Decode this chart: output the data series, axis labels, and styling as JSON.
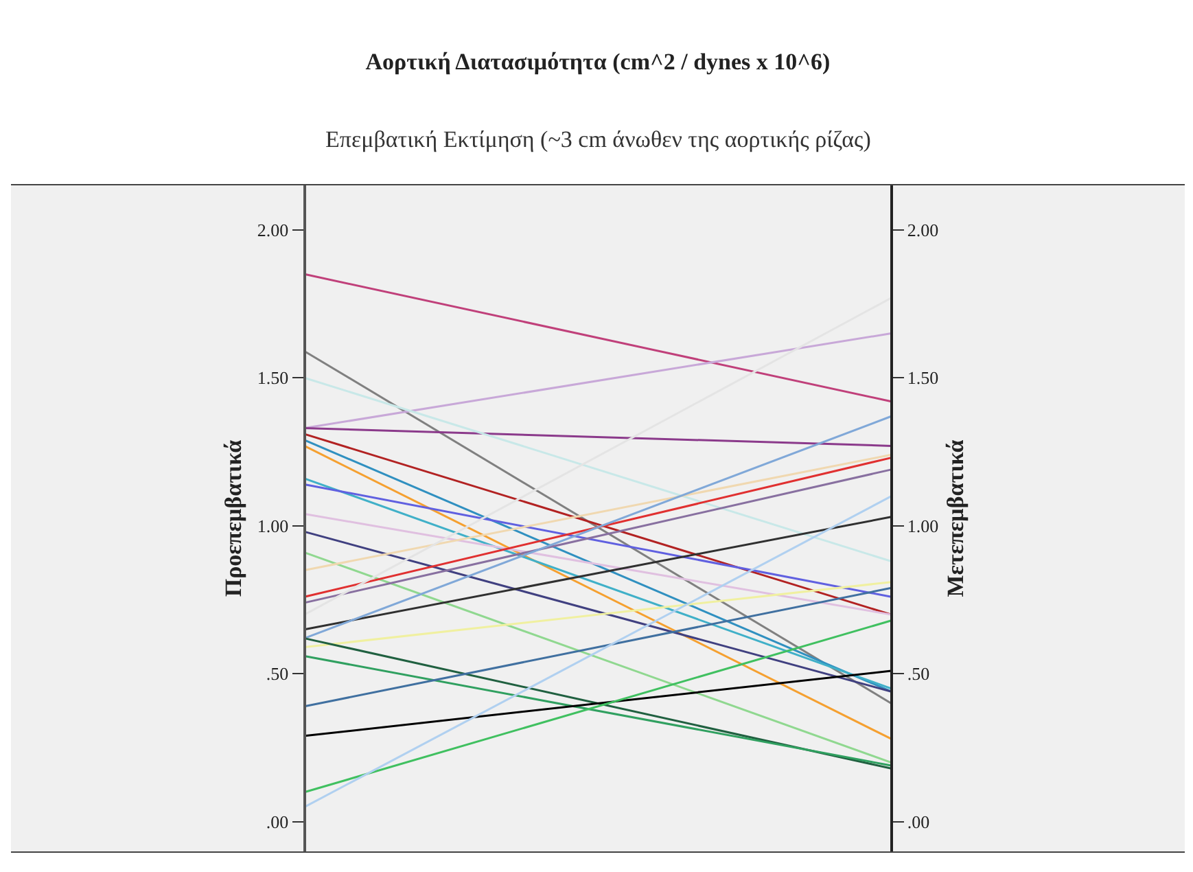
{
  "chart_data": {
    "type": "line",
    "title": "Αορτική Διατασιμότητα (cm^2 / dynes x 10^6)",
    "subtitle": "Επεμβατική Εκτίμηση (~3 cm άνωθεν της αορτικής ρίζας)",
    "ylabel": "Προεπεμβατικά",
    "y2label": "Μετεπεμβατικά",
    "categories": [
      null,
      null
    ],
    "ylim": [
      -0.1,
      2.15
    ],
    "yticks": [
      {
        "value": 0,
        "label": ".00"
      },
      {
        "value": 0.5,
        "label": ".50"
      },
      {
        "value": 1,
        "label": "1.00"
      },
      {
        "value": 1.5,
        "label": "1.50"
      },
      {
        "value": 2,
        "label": "2.00"
      }
    ],
    "y2lim": [
      -0.1,
      2.15
    ],
    "y2ticks": [
      {
        "value": 0,
        "label": ".00"
      },
      {
        "value": 0.5,
        "label": ".50"
      },
      {
        "value": 1,
        "label": "1.00"
      },
      {
        "value": 1.5,
        "label": "1.50"
      },
      {
        "value": 2,
        "label": "2.00"
      }
    ],
    "grid": false,
    "marker": "none",
    "line_style": "solid",
    "series": [
      {
        "color": "#c0407a",
        "values": [
          1.85,
          1.42
        ]
      },
      {
        "color": "#808080",
        "values": [
          1.59,
          0.4
        ]
      },
      {
        "color": "#c8a8d8",
        "values": [
          1.33,
          1.65
        ]
      },
      {
        "color": "#8b3a8b",
        "values": [
          1.33,
          1.27
        ]
      },
      {
        "color": "#b22222",
        "values": [
          1.31,
          0.7
        ]
      },
      {
        "color": "#c8e8e8",
        "values": [
          1.5,
          0.88
        ]
      },
      {
        "color": "#f5a030",
        "values": [
          1.27,
          0.28
        ]
      },
      {
        "color": "#3090c0",
        "values": [
          1.29,
          0.44
        ]
      },
      {
        "color": "#40b0c8",
        "values": [
          1.16,
          0.45
        ]
      },
      {
        "color": "#6060e0",
        "values": [
          1.14,
          0.76
        ]
      },
      {
        "color": "#e0c0e0",
        "values": [
          1.04,
          0.7
        ]
      },
      {
        "color": "#404080",
        "values": [
          0.98,
          0.44
        ]
      },
      {
        "color": "#90d890",
        "values": [
          0.91,
          0.2
        ]
      },
      {
        "color": "#f0d8b0",
        "values": [
          0.85,
          1.24
        ]
      },
      {
        "color": "#e03030",
        "values": [
          0.76,
          1.23
        ]
      },
      {
        "color": "#8870a0",
        "values": [
          0.74,
          1.19
        ]
      },
      {
        "color": "#303030",
        "values": [
          0.65,
          1.03
        ]
      },
      {
        "color": "#80a8d8",
        "values": [
          0.62,
          1.37
        ]
      },
      {
        "color": "#f0f0a0",
        "values": [
          0.59,
          0.81
        ]
      },
      {
        "color": "#206040",
        "values": [
          0.62,
          0.18
        ]
      },
      {
        "color": "#30a060",
        "values": [
          0.56,
          0.19
        ]
      },
      {
        "color": "#4070a0",
        "values": [
          0.39,
          0.79
        ]
      },
      {
        "color": "#000000",
        "values": [
          0.29,
          0.51
        ]
      },
      {
        "color": "#40c060",
        "values": [
          0.1,
          0.68
        ]
      },
      {
        "color": "#b0d0f0",
        "values": [
          0.05,
          1.1
        ]
      },
      {
        "color": "#e4e4e4",
        "values": [
          0.7,
          1.77
        ]
      }
    ]
  }
}
